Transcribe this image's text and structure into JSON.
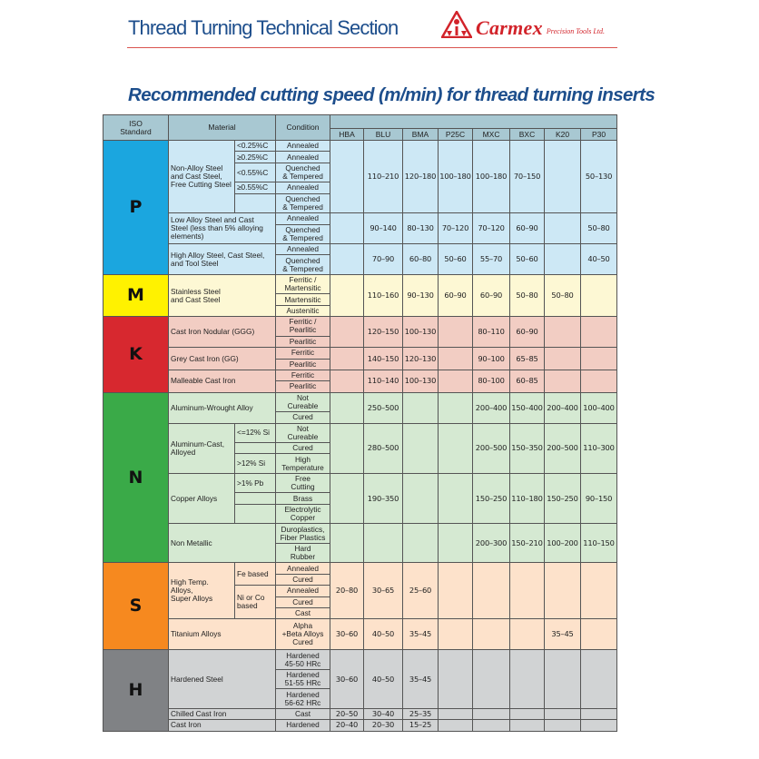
{
  "header": {
    "title": "Thread Turning Technical Section",
    "brand": "Carmex",
    "brand_sub": "Precision Tools Ltd.",
    "brand_color": "#d2232a",
    "title_color": "#1d4e8c"
  },
  "heading": "Recommended cutting speed (m/min) for thread turning inserts",
  "table": {
    "col_iso": "ISO\nStandard",
    "col_material": "Material",
    "col_condition": "Condition",
    "grades": [
      "HBA",
      "BLU",
      "BMA",
      "P25C",
      "MXC",
      "BXC",
      "K20",
      "P30"
    ],
    "header_color": "#a8c8d2"
  },
  "groups": [
    {
      "iso": "P",
      "color": "#1ba6df",
      "bg": "#cde8f5",
      "materials": [
        {
          "name": "Non-Alloy Steel\nand Cast Steel,\nFree Cutting Steel",
          "subs": [
            {
              "label": "<0.25%C",
              "span": 1
            },
            {
              "label": "≥0.25%C",
              "span": 1
            },
            {
              "label": "<0.55%C",
              "span": 1
            },
            {
              "label": "≥0.55%C",
              "span": 1
            },
            {
              "label": "",
              "span": 1
            }
          ],
          "conditions": [
            "Annealed",
            "Annealed",
            "Quenched\n& Tempered",
            "Annealed",
            "Quenched\n& Tempered"
          ],
          "speeds": [
            "",
            "110–210",
            "120–180",
            "100–180",
            "100–180",
            "70–150",
            "",
            "50–130"
          ]
        },
        {
          "name": "Low Alloy Steel and Cast\nSteel (less than 5% alloying\nelements)",
          "conditions": [
            "Annealed",
            "Quenched\n& Tempered"
          ],
          "speeds": [
            "",
            "90–140",
            "80–130",
            "70–120",
            "70–120",
            "60–90",
            "",
            "50–80"
          ]
        },
        {
          "name": "High Alloy Steel, Cast Steel,\nand Tool Steel",
          "conditions": [
            "Annealed",
            "Quenched\n& Tempered"
          ],
          "speeds": [
            "",
            "70–90",
            "60–80",
            "50–60",
            "55–70",
            "50–60",
            "",
            "40–50"
          ]
        }
      ]
    },
    {
      "iso": "M",
      "color": "#fff200",
      "bg": "#fdf8d4",
      "materials": [
        {
          "name": "Stainless Steel\nand Cast Steel",
          "conditions": [
            "Ferritic /\nMartensitic",
            "Martensitic",
            "Austenitic"
          ],
          "speeds": [
            "",
            "110–160",
            "90–130",
            "60–90",
            "60–90",
            "50–80",
            "50–80",
            ""
          ]
        }
      ]
    },
    {
      "iso": "K",
      "color": "#d7282f",
      "bg": "#f2cdc3",
      "materials": [
        {
          "name": "Cast Iron Nodular (GGG)",
          "conditions": [
            "Ferritic /\nPearlitic",
            "Pearlitic"
          ],
          "speeds": [
            "",
            "120–150",
            "100–130",
            "",
            "80–110",
            "60–90",
            "",
            ""
          ]
        },
        {
          "name": "Grey Cast Iron (GG)",
          "conditions": [
            "Ferritic",
            "Pearlitic"
          ],
          "speeds": [
            "",
            "140–150",
            "120–130",
            "",
            "90–100",
            "65–85",
            "",
            ""
          ]
        },
        {
          "name": "Malleable Cast Iron",
          "conditions": [
            "Ferritic",
            "Pearlitic"
          ],
          "speeds": [
            "",
            "110–140",
            "100–130",
            "",
            "80–100",
            "60–85",
            "",
            ""
          ]
        }
      ]
    },
    {
      "iso": "N",
      "color": "#3aaa48",
      "bg": "#d5e9d2",
      "materials": [
        {
          "name": "Aluminum-Wrought Alloy",
          "conditions": [
            "Not\nCureable",
            "Cured"
          ],
          "speeds": [
            "",
            "250–500",
            "",
            "",
            "200–400",
            "150–400",
            "200–400",
            "100–400"
          ]
        },
        {
          "name": "Aluminum-Cast,\nAlloyed",
          "subs": [
            {
              "label": "<=12% Si",
              "span": 1
            },
            {
              "label": "",
              "span": 1
            },
            {
              "label": ">12% Si",
              "span": 1
            }
          ],
          "conditions": [
            "Not\nCureable",
            "Cured",
            "High\nTemperature"
          ],
          "speeds": [
            "",
            "280–500",
            "",
            "",
            "200–500",
            "150–350",
            "200–500",
            "110–300"
          ]
        },
        {
          "name": "Copper Alloys",
          "subs": [
            {
              "label": ">1% Pb",
              "span": 1
            },
            {
              "label": "",
              "span": 1
            },
            {
              "label": "",
              "span": 1
            }
          ],
          "conditions": [
            "Free\nCutting",
            "Brass",
            "Electrolytic\nCopper"
          ],
          "speeds": [
            "",
            "190–350",
            "",
            "",
            "150–250",
            "110–180",
            "150–250",
            "90–150"
          ]
        },
        {
          "name": "Non Metallic",
          "conditions": [
            "Duroplastics,\nFiber Plastics",
            "Hard\nRubber"
          ],
          "speeds": [
            "",
            "",
            "",
            "",
            "200–300",
            "150–210",
            "100–200",
            "110–150"
          ]
        }
      ]
    },
    {
      "iso": "S",
      "color": "#f6891f",
      "bg": "#fde2cb",
      "materials": [
        {
          "name": "High Temp. Alloys,\nSuper Alloys",
          "subs": [
            {
              "label": "Fe based",
              "span": 2
            },
            {
              "label": "Ni or Co\nbased",
              "span": 3
            }
          ],
          "conditions": [
            "Annealed",
            "Cured",
            "Annealed",
            "Cured",
            "Cast"
          ],
          "speeds": [
            "20–80",
            "30–65",
            "25–60",
            "",
            "",
            "",
            "",
            ""
          ]
        },
        {
          "name": "Titanium Alloys",
          "conditions": [
            "Alpha\n+Beta Alloys\nCured"
          ],
          "speeds": [
            "30–60",
            "40–50",
            "35–45",
            "",
            "",
            "",
            "35–45",
            ""
          ]
        }
      ]
    },
    {
      "iso": "H",
      "color": "#808285",
      "bg": "#d1d3d4",
      "materials": [
        {
          "name": "Hardened Steel",
          "conditions": [
            "Hardened\n45-50 HRc",
            "Hardened\n51-55 HRc",
            "Hardened\n56-62 HRc"
          ],
          "speeds": [
            "30–60",
            "40–50",
            "35–45",
            "",
            "",
            "",
            "",
            ""
          ]
        },
        {
          "name": "Chilled Cast Iron",
          "conditions": [
            "Cast"
          ],
          "speeds": [
            "20–50",
            "30–40",
            "25–35",
            "",
            "",
            "",
            "",
            ""
          ]
        },
        {
          "name": "Cast Iron",
          "conditions": [
            "Hardened"
          ],
          "speeds": [
            "20–40",
            "20–30",
            "15–25",
            "",
            "",
            "",
            "",
            ""
          ]
        }
      ]
    }
  ]
}
